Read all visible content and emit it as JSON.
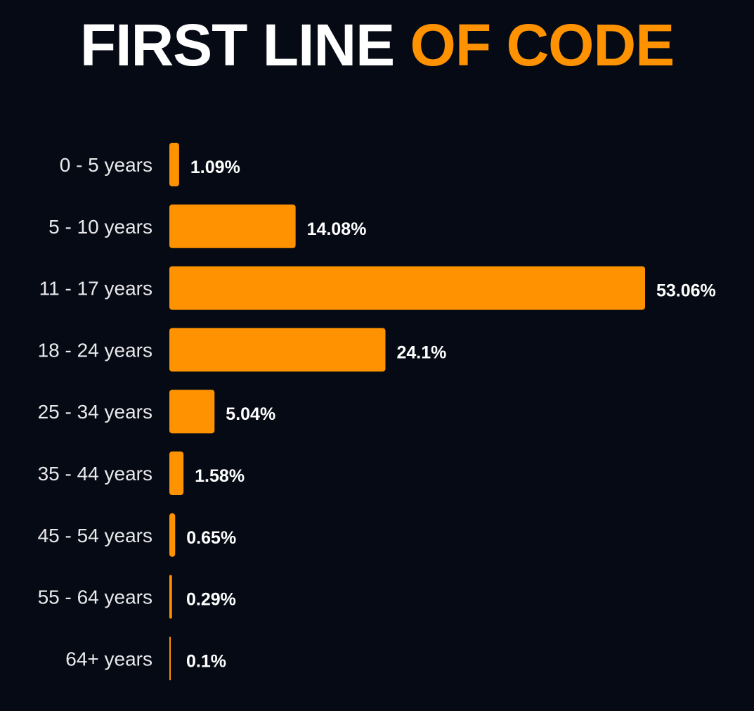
{
  "title": {
    "part1": "FIRST LINE",
    "part2": "OF CODE"
  },
  "colors": {
    "background": "#060a14",
    "bar": "#ff9200",
    "title_primary": "#ffffff",
    "title_accent": "#ff9200"
  },
  "chart_data": {
    "type": "bar",
    "orientation": "horizontal",
    "title": "FIRST LINE OF CODE",
    "categories": [
      "0 - 5 years",
      "5 - 10 years",
      "11 - 17 years",
      "18 - 24 years",
      "25 - 34 years",
      "35 - 44 years",
      "45 - 54 years",
      "55 - 64 years",
      "64+ years"
    ],
    "values": [
      1.09,
      14.08,
      53.06,
      24.1,
      5.04,
      1.58,
      0.65,
      0.29,
      0.1
    ],
    "value_labels": [
      "1.09%",
      "14.08%",
      "53.06%",
      "24.1%",
      "5.04%",
      "1.58%",
      "0.65%",
      "0.29%",
      "0.1%"
    ],
    "xlabel": "",
    "ylabel": "",
    "xlim": [
      0,
      53.06
    ],
    "grid": false,
    "legend": "none"
  }
}
